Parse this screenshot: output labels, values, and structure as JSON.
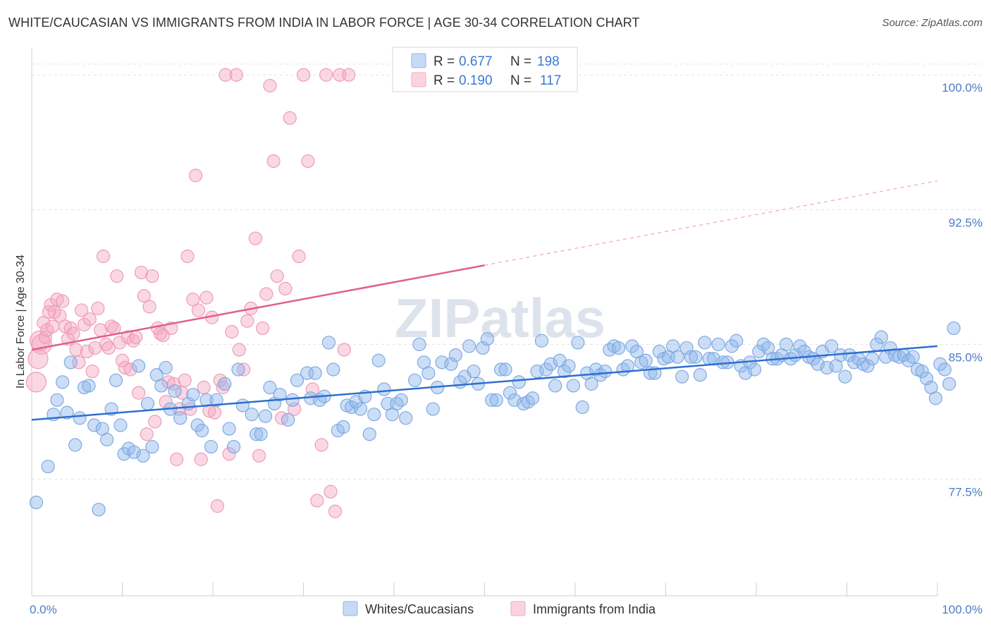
{
  "title": "WHITE/CAUCASIAN VS IMMIGRANTS FROM INDIA IN LABOR FORCE | AGE 30-34 CORRELATION CHART",
  "source": "Source: ZipAtlas.com",
  "watermark": "ZIPatlas",
  "legend": {
    "rows": [
      {
        "r_label": "R =",
        "r_value": "0.677",
        "n_label": "N =",
        "n_value": "198",
        "color": "#8fb6ea"
      },
      {
        "r_label": "R =",
        "r_value": "0.190",
        "n_label": "N =",
        "n_value": "117",
        "color": "#f4a9c0"
      }
    ]
  },
  "bottom_legend": [
    {
      "label": "Whites/Caucasians",
      "color": "#8fb6ea"
    },
    {
      "label": "Immigrants from India",
      "color": "#f4a9c0"
    }
  ],
  "chart_data": {
    "type": "scatter",
    "title": "WHITE/CAUCASIAN VS IMMIGRANTS FROM INDIA IN LABOR FORCE | AGE 30-34 CORRELATION CHART",
    "xlabel": "",
    "ylabel": "In Labor Force | Age 30-34",
    "xlim": [
      0,
      100
    ],
    "ylim": [
      71.0,
      101.5
    ],
    "x_tick_labels": [
      "0.0%",
      "100.0%"
    ],
    "y_ticks": [
      77.5,
      85.0,
      92.5,
      100.0
    ],
    "y_tick_labels": [
      "77.5%",
      "85.0%",
      "92.5%",
      "100.0%"
    ],
    "grid": "horizontal dashed",
    "series": [
      {
        "name": "Whites/Caucasians",
        "color": "#8fb6ea",
        "line_color": "#2f6fce",
        "trend": {
          "x0": 0,
          "y0": 80.8,
          "x1": 100,
          "y1": 84.9
        },
        "points": [
          [
            0.5,
            76.2
          ],
          [
            1.8,
            78.2
          ],
          [
            2.4,
            81.1
          ],
          [
            2.8,
            81.9
          ],
          [
            3.4,
            82.9
          ],
          [
            3.9,
            81.2
          ],
          [
            4.3,
            84.0
          ],
          [
            4.8,
            79.4
          ],
          [
            5.3,
            80.9
          ],
          [
            5.8,
            82.6
          ],
          [
            6.3,
            82.7
          ],
          [
            6.9,
            80.5
          ],
          [
            7.4,
            75.8
          ],
          [
            7.8,
            80.3
          ],
          [
            8.3,
            79.7
          ],
          [
            8.8,
            81.4
          ],
          [
            9.3,
            83.0
          ],
          [
            9.8,
            80.5
          ],
          [
            10.2,
            78.9
          ],
          [
            10.7,
            79.2
          ],
          [
            11.3,
            79.0
          ],
          [
            11.8,
            83.8
          ],
          [
            12.3,
            78.8
          ],
          [
            12.8,
            81.7
          ],
          [
            13.3,
            79.3
          ],
          [
            13.8,
            83.3
          ],
          [
            14.3,
            82.7
          ],
          [
            14.8,
            83.7
          ],
          [
            15.3,
            81.4
          ],
          [
            15.8,
            82.4
          ],
          [
            16.4,
            80.9
          ],
          [
            17.3,
            81.7
          ],
          [
            17.8,
            82.2
          ],
          [
            18.3,
            80.5
          ],
          [
            18.8,
            80.2
          ],
          [
            19.3,
            81.9
          ],
          [
            19.8,
            79.3
          ],
          [
            20.4,
            81.9
          ],
          [
            21.3,
            82.8
          ],
          [
            21.8,
            80.3
          ],
          [
            22.3,
            79.3
          ],
          [
            22.8,
            83.6
          ],
          [
            23.3,
            81.6
          ],
          [
            24.3,
            81.1
          ],
          [
            24.8,
            80.0
          ],
          [
            25.3,
            80.0
          ],
          [
            25.8,
            81.0
          ],
          [
            26.3,
            82.6
          ],
          [
            26.8,
            81.7
          ],
          [
            27.4,
            82.2
          ],
          [
            28.3,
            80.8
          ],
          [
            28.8,
            81.9
          ],
          [
            29.3,
            83.0
          ],
          [
            30.4,
            83.4
          ],
          [
            30.8,
            82.0
          ],
          [
            31.3,
            83.4
          ],
          [
            31.8,
            81.9
          ],
          [
            32.3,
            82.1
          ],
          [
            32.8,
            85.1
          ],
          [
            33.3,
            83.6
          ],
          [
            33.8,
            80.2
          ],
          [
            34.4,
            80.4
          ],
          [
            34.8,
            81.6
          ],
          [
            35.3,
            81.5
          ],
          [
            35.8,
            81.8
          ],
          [
            36.3,
            81.4
          ],
          [
            36.8,
            82.1
          ],
          [
            37.3,
            80.0
          ],
          [
            37.8,
            81.1
          ],
          [
            38.3,
            84.1
          ],
          [
            38.9,
            82.5
          ],
          [
            39.3,
            81.7
          ],
          [
            39.8,
            81.1
          ],
          [
            40.3,
            81.7
          ],
          [
            40.8,
            81.9
          ],
          [
            41.3,
            80.9
          ],
          [
            42.3,
            83.0
          ],
          [
            42.8,
            85.0
          ],
          [
            43.3,
            84.0
          ],
          [
            43.8,
            83.4
          ],
          [
            44.3,
            81.4
          ],
          [
            44.8,
            82.6
          ],
          [
            45.3,
            84.0
          ],
          [
            46.3,
            83.9
          ],
          [
            46.8,
            84.4
          ],
          [
            47.3,
            82.9
          ],
          [
            47.8,
            83.2
          ],
          [
            48.3,
            84.9
          ],
          [
            48.8,
            83.5
          ],
          [
            49.3,
            82.8
          ],
          [
            49.8,
            84.8
          ],
          [
            50.3,
            85.3
          ],
          [
            50.8,
            81.9
          ],
          [
            51.3,
            81.9
          ],
          [
            51.8,
            83.6
          ],
          [
            52.3,
            83.6
          ],
          [
            52.8,
            82.3
          ],
          [
            53.3,
            81.9
          ],
          [
            53.8,
            82.9
          ],
          [
            54.3,
            81.7
          ],
          [
            54.8,
            81.8
          ],
          [
            55.3,
            82.0
          ],
          [
            55.8,
            83.5
          ],
          [
            56.3,
            85.2
          ],
          [
            56.8,
            83.6
          ],
          [
            57.3,
            83.9
          ],
          [
            57.8,
            82.7
          ],
          [
            58.3,
            84.1
          ],
          [
            58.8,
            83.5
          ],
          [
            59.3,
            83.8
          ],
          [
            59.8,
            82.7
          ],
          [
            60.3,
            85.1
          ],
          [
            60.8,
            81.5
          ],
          [
            61.3,
            83.4
          ],
          [
            61.8,
            82.8
          ],
          [
            62.3,
            83.6
          ],
          [
            62.8,
            83.3
          ],
          [
            63.3,
            83.5
          ],
          [
            63.8,
            84.7
          ],
          [
            64.3,
            84.9
          ],
          [
            64.8,
            84.8
          ],
          [
            65.3,
            83.6
          ],
          [
            65.8,
            83.8
          ],
          [
            66.3,
            84.9
          ],
          [
            66.8,
            84.6
          ],
          [
            67.3,
            84.0
          ],
          [
            67.8,
            84.1
          ],
          [
            68.3,
            83.4
          ],
          [
            68.8,
            83.4
          ],
          [
            69.3,
            84.6
          ],
          [
            69.8,
            84.2
          ],
          [
            70.3,
            84.3
          ],
          [
            70.8,
            84.9
          ],
          [
            71.3,
            84.3
          ],
          [
            71.8,
            83.2
          ],
          [
            72.3,
            84.8
          ],
          [
            72.8,
            84.3
          ],
          [
            73.3,
            84.3
          ],
          [
            73.8,
            83.3
          ],
          [
            74.3,
            85.1
          ],
          [
            74.8,
            84.2
          ],
          [
            75.3,
            84.2
          ],
          [
            75.8,
            85.0
          ],
          [
            76.3,
            84.0
          ],
          [
            76.8,
            84.0
          ],
          [
            77.3,
            84.9
          ],
          [
            77.8,
            85.2
          ],
          [
            78.3,
            83.8
          ],
          [
            78.8,
            83.4
          ],
          [
            79.3,
            84.0
          ],
          [
            79.8,
            83.6
          ],
          [
            80.3,
            84.6
          ],
          [
            80.8,
            85.0
          ],
          [
            81.3,
            84.8
          ],
          [
            81.8,
            84.2
          ],
          [
            82.3,
            84.2
          ],
          [
            82.8,
            84.4
          ],
          [
            83.3,
            85.0
          ],
          [
            83.8,
            84.2
          ],
          [
            84.3,
            84.4
          ],
          [
            84.8,
            84.9
          ],
          [
            85.3,
            84.6
          ],
          [
            85.8,
            84.3
          ],
          [
            86.3,
            84.2
          ],
          [
            86.8,
            83.9
          ],
          [
            87.3,
            84.6
          ],
          [
            87.8,
            83.7
          ],
          [
            88.3,
            84.9
          ],
          [
            88.8,
            83.8
          ],
          [
            89.3,
            84.4
          ],
          [
            89.8,
            83.2
          ],
          [
            90.3,
            84.4
          ],
          [
            90.8,
            84.0
          ],
          [
            91.3,
            84.2
          ],
          [
            91.8,
            83.9
          ],
          [
            92.3,
            83.8
          ],
          [
            92.8,
            84.2
          ],
          [
            93.3,
            85.0
          ],
          [
            93.8,
            85.4
          ],
          [
            94.3,
            84.3
          ],
          [
            94.8,
            84.8
          ],
          [
            95.3,
            84.4
          ],
          [
            95.8,
            84.3
          ],
          [
            96.3,
            84.4
          ],
          [
            96.8,
            84.1
          ],
          [
            97.3,
            84.3
          ],
          [
            97.8,
            83.6
          ],
          [
            98.3,
            83.5
          ],
          [
            98.8,
            83.1
          ],
          [
            99.3,
            82.6
          ],
          [
            99.8,
            82.0
          ],
          [
            100.3,
            83.9
          ],
          [
            100.8,
            83.6
          ],
          [
            101.3,
            82.8
          ],
          [
            101.8,
            85.9
          ]
        ]
      },
      {
        "name": "Immigrants from India",
        "color": "#f4a9c0",
        "line_color": "#e05f8a",
        "trend": {
          "x0": 0,
          "y0": 84.7,
          "x1": 50,
          "y1": 89.4
        },
        "trend_dashed": {
          "x0": 50,
          "y0": 89.4,
          "x1": 100,
          "y1": 94.1
        },
        "points": [
          [
            0.5,
            82.9
          ],
          [
            0.7,
            84.2
          ],
          [
            0.9,
            85.2
          ],
          [
            1.1,
            85.0
          ],
          [
            1.3,
            86.2
          ],
          [
            1.5,
            85.4
          ],
          [
            1.7,
            85.8
          ],
          [
            1.9,
            86.8
          ],
          [
            2.1,
            87.2
          ],
          [
            2.3,
            86.0
          ],
          [
            2.5,
            86.8
          ],
          [
            2.8,
            87.5
          ],
          [
            3.1,
            86.6
          ],
          [
            3.4,
            87.4
          ],
          [
            3.7,
            86.0
          ],
          [
            4.0,
            85.3
          ],
          [
            4.3,
            85.9
          ],
          [
            4.6,
            85.6
          ],
          [
            4.9,
            84.7
          ],
          [
            5.2,
            84.0
          ],
          [
            5.5,
            86.9
          ],
          [
            5.8,
            86.1
          ],
          [
            6.1,
            84.6
          ],
          [
            6.4,
            86.4
          ],
          [
            6.7,
            83.5
          ],
          [
            7.0,
            84.8
          ],
          [
            7.3,
            87.0
          ],
          [
            7.6,
            85.8
          ],
          [
            7.9,
            89.9
          ],
          [
            8.2,
            85.0
          ],
          [
            8.5,
            84.8
          ],
          [
            8.8,
            86.0
          ],
          [
            9.1,
            85.9
          ],
          [
            9.4,
            88.8
          ],
          [
            9.7,
            85.1
          ],
          [
            10.0,
            84.1
          ],
          [
            10.3,
            83.7
          ],
          [
            10.6,
            85.4
          ],
          [
            10.9,
            83.6
          ],
          [
            11.2,
            85.2
          ],
          [
            11.5,
            85.4
          ],
          [
            11.8,
            82.3
          ],
          [
            12.1,
            89.0
          ],
          [
            12.4,
            87.7
          ],
          [
            12.7,
            80.0
          ],
          [
            13.0,
            87.1
          ],
          [
            13.3,
            88.8
          ],
          [
            13.6,
            80.7
          ],
          [
            13.9,
            85.9
          ],
          [
            14.2,
            85.6
          ],
          [
            14.5,
            85.5
          ],
          [
            14.8,
            81.8
          ],
          [
            15.1,
            82.9
          ],
          [
            15.4,
            85.9
          ],
          [
            15.7,
            82.8
          ],
          [
            16.0,
            78.6
          ],
          [
            16.3,
            81.4
          ],
          [
            16.6,
            82.3
          ],
          [
            16.9,
            83.0
          ],
          [
            17.2,
            89.9
          ],
          [
            17.5,
            81.4
          ],
          [
            17.8,
            87.5
          ],
          [
            18.1,
            94.4
          ],
          [
            18.4,
            86.9
          ],
          [
            18.7,
            78.6
          ],
          [
            19.0,
            82.6
          ],
          [
            19.3,
            87.6
          ],
          [
            19.6,
            81.3
          ],
          [
            19.9,
            86.5
          ],
          [
            20.2,
            81.2
          ],
          [
            20.5,
            76.0
          ],
          [
            20.8,
            83.0
          ],
          [
            21.1,
            82.6
          ],
          [
            21.4,
            100.0
          ],
          [
            21.8,
            78.9
          ],
          [
            22.1,
            85.7
          ],
          [
            22.6,
            100.0
          ],
          [
            22.9,
            84.7
          ],
          [
            23.4,
            83.6
          ],
          [
            23.8,
            86.3
          ],
          [
            24.2,
            87.0
          ],
          [
            24.7,
            90.9
          ],
          [
            25.1,
            78.8
          ],
          [
            25.5,
            85.9
          ],
          [
            25.9,
            87.8
          ],
          [
            26.3,
            99.4
          ],
          [
            26.7,
            95.2
          ],
          [
            27.1,
            88.8
          ],
          [
            27.6,
            80.9
          ],
          [
            28.0,
            88.1
          ],
          [
            28.5,
            97.6
          ],
          [
            29.0,
            81.4
          ],
          [
            29.5,
            89.9
          ],
          [
            30.0,
            100.0
          ],
          [
            30.5,
            95.2
          ],
          [
            31.0,
            82.5
          ],
          [
            31.5,
            76.3
          ],
          [
            32.0,
            79.4
          ],
          [
            32.5,
            100.0
          ],
          [
            33.0,
            76.8
          ],
          [
            33.5,
            75.7
          ],
          [
            34.0,
            100.0
          ],
          [
            34.5,
            84.7
          ],
          [
            35.0,
            100.0
          ]
        ]
      }
    ]
  }
}
